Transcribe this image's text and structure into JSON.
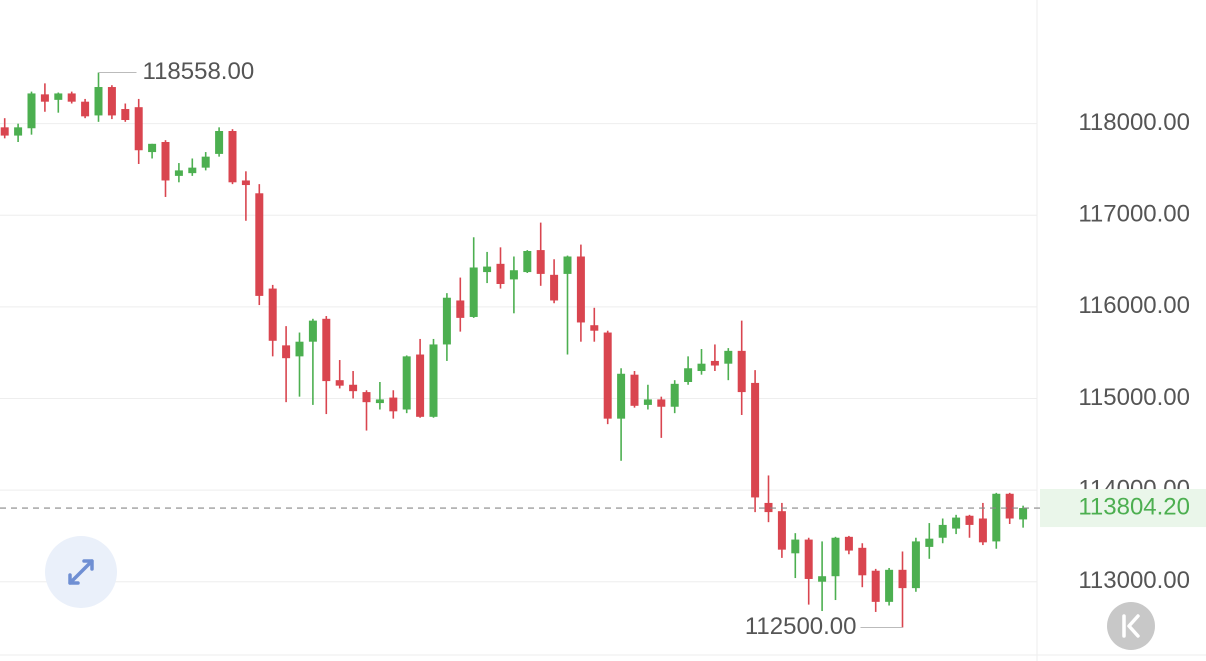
{
  "chart_data": {
    "type": "candlestick",
    "up_color": "#4caf50",
    "down_color": "#d9454f",
    "ylim": [
      112200,
      119350
    ],
    "yticks": [
      {
        "value": 113000,
        "label": "113000.00"
      },
      {
        "value": 114000,
        "label": "114000.00"
      },
      {
        "value": 115000,
        "label": "115000.00"
      },
      {
        "value": 116000,
        "label": "116000.00"
      },
      {
        "value": 117000,
        "label": "117000.00"
      },
      {
        "value": 118000,
        "label": "118000.00"
      }
    ],
    "grid": true,
    "open": [
      117960,
      117870,
      117950,
      118320,
      118260,
      118330,
      118240,
      118090,
      118400,
      118160,
      118180,
      117690,
      117800,
      117430,
      117460,
      117520,
      117670,
      117920,
      117380,
      117240,
      116200,
      115580,
      115460,
      115620,
      115870,
      115200,
      115150,
      115070,
      114950,
      115010,
      114880,
      115480,
      114800,
      115590,
      116070,
      115890,
      116380,
      116470,
      116300,
      116380,
      116620,
      116350,
      116360,
      116550,
      115800,
      115720,
      114780,
      115260,
      114930,
      114990,
      114910,
      115180,
      115300,
      115410,
      115380,
      115520,
      115170,
      113860,
      113770,
      113310,
      113460,
      113000,
      113060,
      113490,
      113370,
      113120,
      112780,
      113130,
      112930,
      113380,
      113480,
      113580,
      113720,
      113690,
      113440,
      113960,
      113680
    ],
    "high": [
      118060,
      118000,
      118350,
      118440,
      118340,
      118350,
      118270,
      118558,
      118420,
      118220,
      118270,
      117780,
      117820,
      117570,
      117620,
      117690,
      117960,
      117940,
      117480,
      117340,
      116240,
      115790,
      115720,
      115870,
      115900,
      115420,
      115300,
      115090,
      115180,
      115090,
      115470,
      115650,
      115650,
      116150,
      116320,
      116760,
      116600,
      116650,
      116550,
      116620,
      116920,
      116520,
      116560,
      116680,
      115990,
      115740,
      115330,
      115300,
      115150,
      115020,
      115200,
      115460,
      115540,
      115590,
      115550,
      115850,
      115310,
      114160,
      113860,
      113530,
      113480,
      113440,
      113490,
      113500,
      113420,
      113140,
      113150,
      113330,
      113480,
      113640,
      113690,
      113730,
      113730,
      113860,
      113970,
      113970,
      113830
    ],
    "low": [
      117840,
      117800,
      117880,
      118130,
      118120,
      118220,
      118060,
      118020,
      118050,
      118020,
      117560,
      117620,
      117200,
      117360,
      117430,
      117490,
      117640,
      117340,
      116940,
      116020,
      115460,
      114960,
      115020,
      114930,
      114830,
      115110,
      115000,
      114650,
      114880,
      114780,
      114840,
      114790,
      114790,
      115410,
      115730,
      115880,
      116260,
      116200,
      115930,
      116370,
      116230,
      116040,
      115480,
      115620,
      115620,
      114720,
      114320,
      114900,
      114880,
      114570,
      114840,
      115150,
      115260,
      115300,
      115200,
      114820,
      113760,
      113650,
      113260,
      113040,
      112750,
      112680,
      112800,
      113300,
      112940,
      112670,
      112740,
      112500,
      112890,
      113250,
      113420,
      113520,
      113480,
      113400,
      113360,
      113630,
      113590
    ],
    "close": [
      117870,
      117960,
      118330,
      118240,
      118330,
      118240,
      118080,
      118400,
      118090,
      118040,
      117710,
      117780,
      117380,
      117490,
      117520,
      117640,
      117920,
      117360,
      117330,
      116120,
      115630,
      115440,
      115620,
      115850,
      115190,
      115140,
      115080,
      114960,
      114990,
      114860,
      115460,
      114800,
      115590,
      116100,
      115880,
      116430,
      116440,
      116250,
      116400,
      116610,
      116360,
      116070,
      116550,
      115830,
      115740,
      114780,
      115270,
      114920,
      114990,
      114910,
      115160,
      115330,
      115380,
      115360,
      115520,
      115070,
      113920,
      113760,
      113350,
      113460,
      113030,
      113060,
      113480,
      113340,
      113070,
      112780,
      113130,
      112930,
      113440,
      113470,
      113620,
      113700,
      113620,
      113430,
      113960,
      113690,
      113804.2
    ],
    "annotations": [
      {
        "value": 118558,
        "label": "118558.00"
      },
      {
        "value": 112500,
        "label": "112500.00"
      }
    ],
    "last_price": {
      "value": 113804.2,
      "label": "113804.20"
    }
  }
}
